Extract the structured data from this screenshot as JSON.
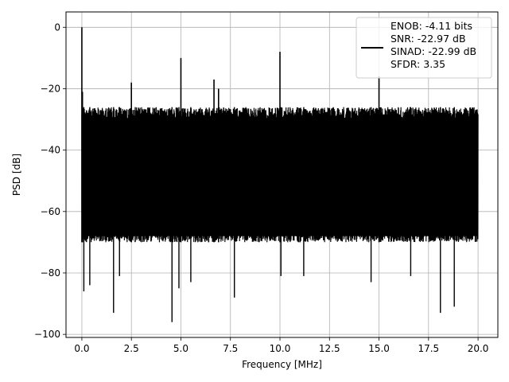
{
  "chart_data": {
    "type": "line",
    "xlabel": "Frequency [MHz]",
    "ylabel": "PSD [dB]",
    "xlim": [
      -0.8,
      21.0
    ],
    "ylim": [
      -101,
      5
    ],
    "xticks": [
      0.0,
      2.5,
      5.0,
      7.5,
      10.0,
      12.5,
      15.0,
      17.5,
      20.0
    ],
    "xtick_labels": [
      "0.0",
      "2.5",
      "5.0",
      "7.5",
      "10.0",
      "12.5",
      "15.0",
      "17.5",
      "20.0"
    ],
    "yticks": [
      0,
      -20,
      -40,
      -60,
      -80,
      -100
    ],
    "ytick_labels": [
      "0",
      "−20",
      "−40",
      "−60",
      "−80",
      "−100"
    ],
    "grid": true,
    "legend_position": "top-right",
    "legend_lines": [
      "ENOB: -4.11 bits",
      "SNR: -22.97 dB",
      "SINAD: -22.99 dB",
      "SFDR: 3.35"
    ],
    "noise_floor": {
      "x_range": [
        0.0,
        20.0
      ],
      "upper_envelope_db": -26,
      "lower_envelope_db": -70
    },
    "series": [
      {
        "color": "#000000",
        "spikes": [
          {
            "x": 0.0,
            "y": 0
          },
          {
            "x": 0.03,
            "y": -21
          },
          {
            "x": 2.5,
            "y": -18
          },
          {
            "x": 5.0,
            "y": -10
          },
          {
            "x": 6.67,
            "y": -17
          },
          {
            "x": 6.9,
            "y": -20
          },
          {
            "x": 10.0,
            "y": -8
          },
          {
            "x": 15.0,
            "y": -16
          }
        ],
        "dips": [
          {
            "x": 0.1,
            "y": -86
          },
          {
            "x": 0.4,
            "y": -84
          },
          {
            "x": 1.6,
            "y": -93
          },
          {
            "x": 1.9,
            "y": -81
          },
          {
            "x": 4.55,
            "y": -96
          },
          {
            "x": 4.9,
            "y": -85
          },
          {
            "x": 5.5,
            "y": -83
          },
          {
            "x": 7.7,
            "y": -88
          },
          {
            "x": 10.05,
            "y": -81
          },
          {
            "x": 11.2,
            "y": -81
          },
          {
            "x": 14.6,
            "y": -83
          },
          {
            "x": 16.6,
            "y": -81
          },
          {
            "x": 18.1,
            "y": -93
          },
          {
            "x": 18.8,
            "y": -91
          }
        ]
      }
    ]
  }
}
